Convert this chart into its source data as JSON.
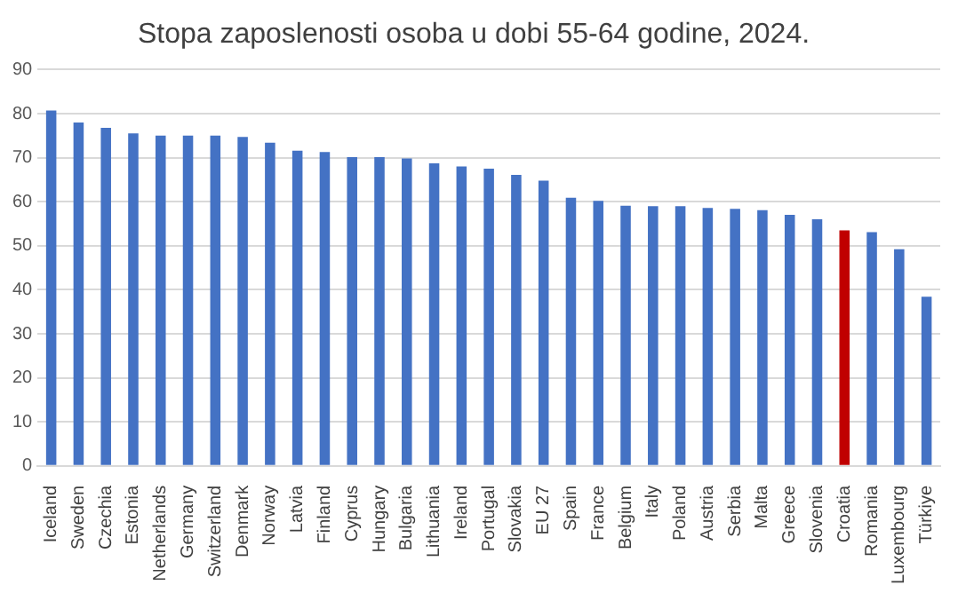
{
  "chart_data": {
    "type": "bar",
    "title": "Stopa zaposlenosti osoba u dobi 55-64 godine, 2024.",
    "categories": [
      "Iceland",
      "Sweden",
      "Czechia",
      "Estonia",
      "Netherlands",
      "Germany",
      "Switzerland",
      "Denmark",
      "Norway",
      "Latvia",
      "Finland",
      "Cyprus",
      "Hungary",
      "Bulgaria",
      "Lithuania",
      "Ireland",
      "Portugal",
      "Slovakia",
      "EU 27",
      "Spain",
      "France",
      "Belgium",
      "Italy",
      "Poland",
      "Austria",
      "Serbia",
      "Malta",
      "Greece",
      "Slovenia",
      "Croatia",
      "Romania",
      "Luxembourg",
      "Türkiye"
    ],
    "values": [
      80.7,
      78.0,
      76.8,
      75.5,
      75.0,
      75.0,
      75.0,
      74.7,
      73.4,
      71.6,
      71.3,
      70.1,
      70.1,
      69.8,
      68.7,
      68.0,
      67.5,
      66.1,
      64.8,
      60.9,
      60.2,
      59.1,
      59.0,
      59.0,
      58.6,
      58.4,
      58.1,
      57.0,
      56.0,
      53.5,
      53.1,
      49.2,
      38.4
    ],
    "colors": [
      "#4472c4",
      "#4472c4",
      "#4472c4",
      "#4472c4",
      "#4472c4",
      "#4472c4",
      "#4472c4",
      "#4472c4",
      "#4472c4",
      "#4472c4",
      "#4472c4",
      "#4472c4",
      "#4472c4",
      "#4472c4",
      "#4472c4",
      "#4472c4",
      "#4472c4",
      "#4472c4",
      "#4472c4",
      "#4472c4",
      "#4472c4",
      "#4472c4",
      "#4472c4",
      "#4472c4",
      "#4472c4",
      "#4472c4",
      "#4472c4",
      "#4472c4",
      "#4472c4",
      "#c00000",
      "#4472c4",
      "#4472c4",
      "#4472c4"
    ],
    "ylim": [
      0,
      90
    ],
    "yticks": [
      0,
      10,
      20,
      30,
      40,
      50,
      60,
      70,
      80,
      90
    ],
    "grid": "y",
    "legend": false
  }
}
